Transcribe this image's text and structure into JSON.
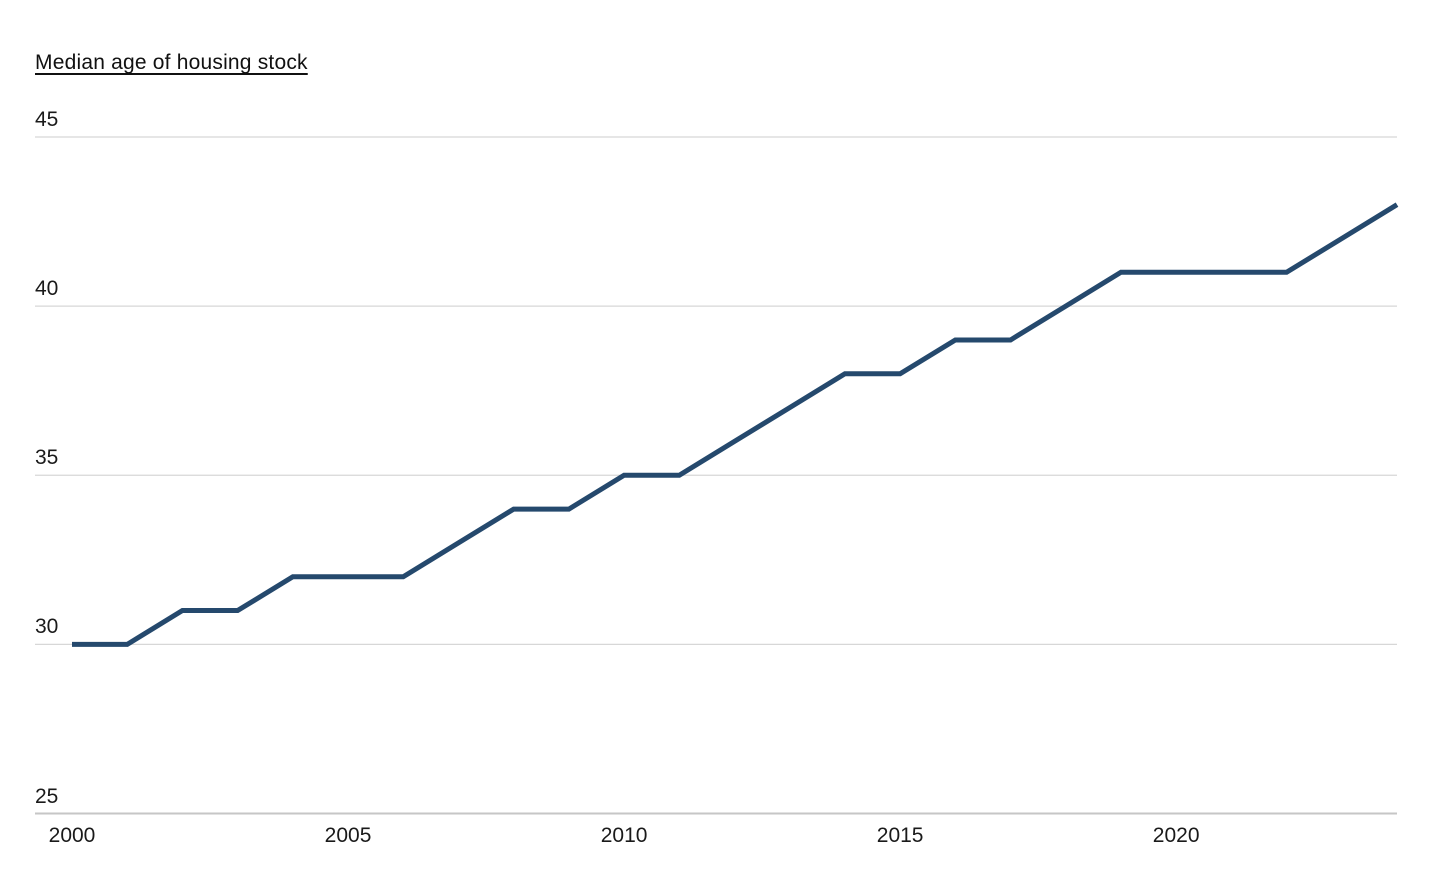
{
  "page": {
    "background": "#ffffff"
  },
  "chart_data": {
    "type": "line",
    "title": "Median age of housing stock",
    "x": [
      2000,
      2001,
      2002,
      2003,
      2004,
      2005,
      2006,
      2007,
      2008,
      2009,
      2010,
      2011,
      2012,
      2013,
      2014,
      2015,
      2016,
      2017,
      2018,
      2019,
      2020,
      2021,
      2022,
      2023,
      2024
    ],
    "values": [
      30,
      30,
      31,
      31,
      32,
      32,
      32,
      33,
      34,
      34,
      35,
      35,
      36,
      37,
      38,
      38,
      39,
      39,
      40,
      41,
      41,
      41,
      41,
      42,
      43
    ],
    "xticks": [
      2000,
      2005,
      2010,
      2015,
      2020
    ],
    "yticks": [
      25,
      30,
      35,
      40,
      45
    ],
    "xlim": [
      2000,
      2024
    ],
    "ylim": [
      25,
      45
    ],
    "grid": "horizontal-only",
    "legend": "none",
    "colors": {
      "line": "#25496d",
      "grid": "#d7d7d7",
      "axis": "#c6c6c6",
      "text": "#1a1a1a",
      "title": "#111111"
    }
  }
}
